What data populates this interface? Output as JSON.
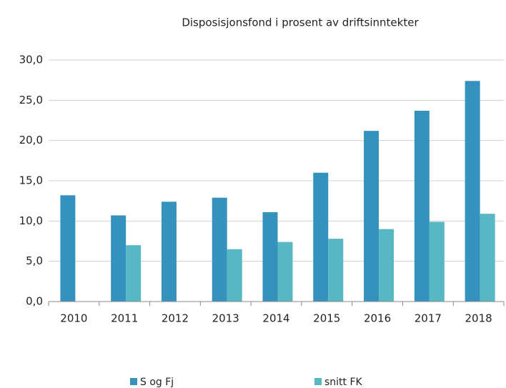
{
  "chart_data": {
    "type": "bar",
    "title": "Disposisjonsfond i prosent av driftsinntekter",
    "categories": [
      "2010",
      "2011",
      "2012",
      "2013",
      "2014",
      "2015",
      "2016",
      "2017",
      "2018"
    ],
    "series": [
      {
        "name": "S og Fj",
        "color": "#3592bd",
        "values": [
          13.2,
          10.7,
          12.4,
          12.9,
          11.1,
          16.0,
          21.2,
          23.7,
          27.4
        ]
      },
      {
        "name": "snitt FK",
        "color": "#57b8c4",
        "values": [
          null,
          7.0,
          null,
          6.5,
          7.4,
          7.8,
          9.0,
          9.9,
          10.9
        ]
      }
    ],
    "ylim": [
      0,
      30
    ],
    "yticks": [
      {
        "value": 0,
        "label": "0,0"
      },
      {
        "value": 5,
        "label": "5,0"
      },
      {
        "value": 10,
        "label": "10,0"
      },
      {
        "value": 15,
        "label": "15,0"
      },
      {
        "value": 20,
        "label": "20,0"
      },
      {
        "value": 25,
        "label": "25,0"
      },
      {
        "value": 30,
        "label": "30,0"
      }
    ],
    "grid": true,
    "legend": "bottom"
  }
}
